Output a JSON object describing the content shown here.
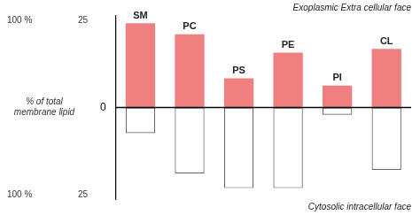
{
  "chart_data": {
    "type": "bar",
    "categories": [
      "SM",
      "PC",
      "PS",
      "PE",
      "PI",
      "CL"
    ],
    "series": [
      {
        "color": "#f08080",
        "values": [
          23,
          20,
          8,
          15,
          6,
          16
        ]
      },
      {
        "color": "white",
        "values": [
          -7,
          -18,
          -22,
          -22,
          -2,
          -17
        ]
      }
    ],
    "stacked": true,
    "ylabel": "% of total\nmembrane lipid",
    "ylim": [
      -25,
      25
    ],
    "yticks": [
      0
    ],
    "grid": false,
    "tick_labels": "y",
    "annotations": [
      "Exoplasmic Extra cellular face",
      "Cytosolic intracellular face",
      "100 %",
      "25",
      "100 %",
      "25"
    ]
  }
}
